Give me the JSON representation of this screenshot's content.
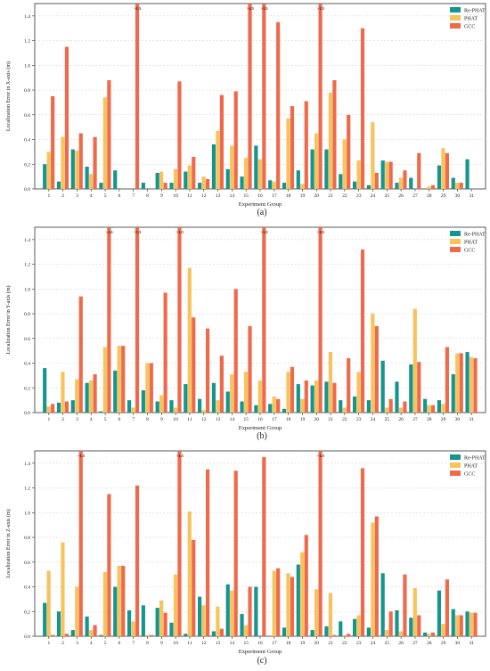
{
  "figure": {
    "panels": [
      "(a)",
      "(b)",
      "(c)"
    ]
  },
  "colors": {
    "Re-PHAT": "#14958e",
    "PHAT": "#f7c35c",
    "GCC": "#ee6a4a"
  },
  "chart_data": [
    {
      "type": "bar",
      "panel_label": "(a)",
      "xlabel": "Experiment Group",
      "ylabel": "Localization Error in X-axis (m)",
      "ylim": [
        0,
        1.5
      ],
      "yticks": [
        "0.0",
        "0.2",
        "0.4",
        "0.6",
        "0.8",
        "1.0",
        "1.2",
        "1.4"
      ],
      "grid": true,
      "legend_position": "top-right",
      "categories": [
        "1",
        "2",
        "3",
        "4",
        "5",
        "6",
        "7",
        "8",
        "9",
        "10",
        "11",
        "12",
        "13",
        "14",
        "15",
        "16",
        "17",
        "18",
        "19",
        "20",
        "21",
        "22",
        "23",
        "24",
        "25",
        "26",
        "27",
        "28",
        "29",
        "30",
        "31"
      ],
      "overflow_label": ">1.5",
      "series": [
        {
          "name": "Re-PHAT",
          "values": [
            0.2,
            0.06,
            0.32,
            0.18,
            0.05,
            0.15,
            null,
            0.05,
            0.13,
            0.05,
            0.14,
            0.05,
            0.36,
            0.16,
            0.1,
            0.35,
            0.07,
            0.05,
            0.15,
            0.32,
            0.32,
            0.12,
            0.06,
            0.03,
            0.23,
            0.05,
            0.09,
            0.0,
            0.19,
            0.09,
            0.24
          ]
        },
        {
          "name": "PHAT",
          "values": [
            0.3,
            0.42,
            0.31,
            0.12,
            0.74,
            null,
            null,
            null,
            0.14,
            0.16,
            0.19,
            0.1,
            0.47,
            0.35,
            0.25,
            0.24,
            0.06,
            0.57,
            0.04,
            0.45,
            0.78,
            0.4,
            0.23,
            0.54,
            0.22,
            0.09,
            null,
            0.02,
            0.33,
            0.05,
            null
          ]
        },
        {
          "name": "GCC",
          "values": [
            0.75,
            1.15,
            0.45,
            0.42,
            0.88,
            null,
            1.5,
            null,
            0.05,
            0.87,
            0.26,
            0.08,
            0.76,
            0.79,
            1.5,
            1.5,
            1.35,
            0.67,
            0.71,
            1.5,
            0.88,
            0.6,
            1.3,
            0.13,
            0.22,
            0.15,
            0.29,
            0.03,
            0.29,
            0.05,
            null
          ]
        }
      ],
      "overflow_bars": [
        [
          7,
          "GCC"
        ],
        [
          15,
          "GCC"
        ],
        [
          16,
          "GCC"
        ],
        [
          20,
          "GCC"
        ]
      ]
    },
    {
      "type": "bar",
      "panel_label": "(b)",
      "xlabel": "Experiment Group",
      "ylabel": "Localization Error in Y-axis (m)",
      "ylim": [
        0,
        1.5
      ],
      "yticks": [
        "0.0",
        "0.2",
        "0.4",
        "0.6",
        "0.8",
        "1.0",
        "1.2",
        "1.4"
      ],
      "grid": true,
      "legend_position": "top-right",
      "categories": [
        "1",
        "2",
        "3",
        "4",
        "5",
        "6",
        "7",
        "8",
        "9",
        "10",
        "11",
        "12",
        "13",
        "14",
        "15",
        "16",
        "17",
        "18",
        "19",
        "20",
        "21",
        "22",
        "23",
        "24",
        "25",
        "26",
        "27",
        "28",
        "29",
        "30",
        "31"
      ],
      "overflow_label": ">1.5",
      "series": [
        {
          "name": "Re-PHAT",
          "values": [
            0.36,
            0.08,
            0.1,
            0.24,
            0.01,
            0.34,
            0.1,
            0.18,
            0.09,
            0.1,
            0.23,
            0.11,
            0.24,
            0.17,
            0.09,
            0.06,
            0.07,
            0.03,
            0.23,
            0.22,
            0.25,
            0.1,
            0.13,
            0.1,
            0.42,
            0.25,
            0.39,
            0.11,
            0.1,
            0.31,
            0.49
          ]
        },
        {
          "name": "PHAT",
          "values": [
            0.05,
            0.33,
            0.27,
            0.26,
            0.53,
            0.54,
            0.04,
            0.4,
            0.14,
            0.04,
            1.17,
            0.02,
            0.1,
            0.31,
            0.33,
            0.26,
            0.13,
            0.33,
            0.11,
            0.26,
            0.49,
            0.04,
            0.33,
            0.8,
            0.04,
            0.04,
            0.84,
            0.06,
            0.07,
            0.48,
            0.45
          ]
        },
        {
          "name": "GCC",
          "values": [
            0.07,
            0.09,
            0.94,
            0.31,
            1.5,
            0.54,
            1.5,
            0.4,
            0.97,
            1.5,
            0.77,
            0.68,
            0.46,
            1.0,
            0.7,
            1.5,
            0.11,
            0.37,
            0.26,
            1.5,
            0.24,
            0.44,
            1.32,
            0.7,
            0.11,
            0.09,
            0.41,
            0.06,
            0.53,
            0.48,
            0.44
          ]
        }
      ],
      "overflow_bars": [
        [
          5,
          "GCC"
        ],
        [
          7,
          "GCC"
        ],
        [
          10,
          "GCC"
        ],
        [
          16,
          "GCC"
        ],
        [
          20,
          "GCC"
        ]
      ]
    },
    {
      "type": "bar",
      "panel_label": "(c)",
      "xlabel": "Experiment Group",
      "ylabel": "Localization Error in Z-axis (m)",
      "ylim": [
        0,
        1.5
      ],
      "yticks": [
        "0.0",
        "0.2",
        "0.4",
        "0.6",
        "0.8",
        "1.0",
        "1.2",
        "1.4"
      ],
      "grid": true,
      "legend_position": "top-right",
      "categories": [
        "1",
        "2",
        "3",
        "4",
        "5",
        "6",
        "7",
        "8",
        "9",
        "10",
        "11",
        "12",
        "13",
        "14",
        "15",
        "16",
        "17",
        "18",
        "19",
        "20",
        "21",
        "22",
        "23",
        "24",
        "25",
        "26",
        "27",
        "28",
        "29",
        "30",
        "31"
      ],
      "overflow_label": ">1.5",
      "series": [
        {
          "name": "Re-PHAT",
          "values": [
            0.27,
            0.2,
            0.05,
            0.16,
            0.01,
            0.4,
            0.21,
            0.25,
            0.23,
            0.11,
            0.02,
            0.32,
            0.04,
            0.42,
            0.18,
            0.4,
            null,
            0.07,
            0.58,
            0.05,
            0.08,
            0.12,
            0.14,
            0.07,
            0.51,
            0.21,
            0.15,
            0.03,
            0.37,
            0.22,
            0.2
          ]
        },
        {
          "name": "PHAT",
          "values": [
            0.53,
            0.76,
            0.4,
            0.05,
            0.52,
            0.57,
            0.12,
            0.01,
            0.29,
            0.5,
            1.01,
            0.25,
            0.24,
            0.37,
            0.09,
            null,
            0.53,
            0.51,
            0.68,
            0.38,
            0.35,
            0.01,
            0.17,
            0.92,
            0.05,
            0.04,
            0.39,
            0.02,
            0.1,
            0.17,
            0.19
          ]
        },
        {
          "name": "GCC",
          "values": [
            0.01,
            0.02,
            1.5,
            0.09,
            1.15,
            0.57,
            1.22,
            0.01,
            0.19,
            1.5,
            0.78,
            1.35,
            0.06,
            1.34,
            0.4,
            1.45,
            0.55,
            0.48,
            0.82,
            1.5,
            0.01,
            0.02,
            1.36,
            0.97,
            0.2,
            0.5,
            0.17,
            0.03,
            0.46,
            0.17,
            0.19
          ]
        }
      ],
      "overflow_bars": [
        [
          3,
          "GCC"
        ],
        [
          10,
          "GCC"
        ],
        [
          20,
          "GCC"
        ]
      ]
    }
  ]
}
